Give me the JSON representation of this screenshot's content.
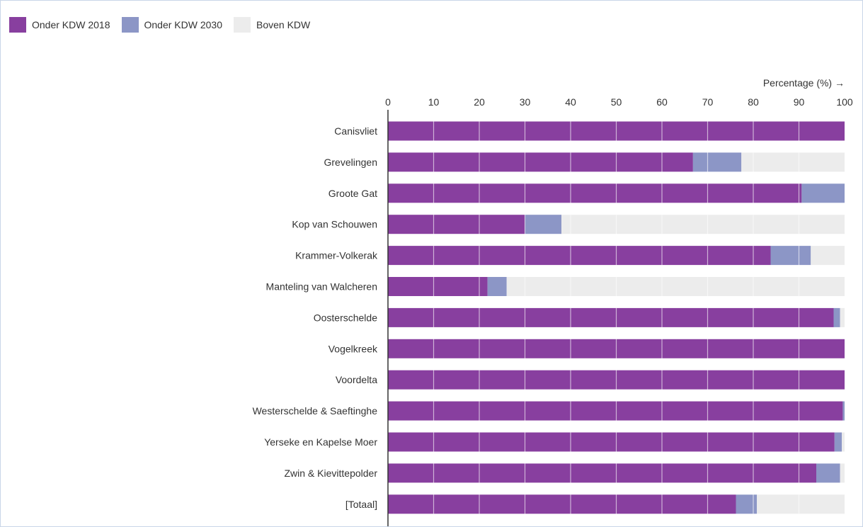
{
  "legend": [
    {
      "label": "Onder KDW 2018",
      "color": "#883f9f"
    },
    {
      "label": "Onder KDW 2030",
      "color": "#8c96c6"
    },
    {
      "label": "Boven KDW",
      "color": "#ececec"
    }
  ],
  "chart_data": {
    "type": "bar",
    "orientation": "horizontal",
    "stacked": true,
    "xlabel": "Percentage (%) →",
    "xlim": [
      0,
      100
    ],
    "xticks": [
      0,
      10,
      20,
      30,
      40,
      50,
      60,
      70,
      80,
      90,
      100
    ],
    "grid": true,
    "legend_position": "top-left",
    "categories": [
      "Canisvliet",
      "Grevelingen",
      "Groote Gat",
      "Kop van Schouwen",
      "Krammer-Volkerak",
      "Manteling van Walcheren",
      "Oosterschelde",
      "Vogelkreek",
      "Voordelta",
      "Westerschelde & Saeftinghe",
      "Yerseke en Kapelse Moer",
      "Zwin & Kievittepolder",
      "[Totaal]"
    ],
    "series": [
      {
        "name": "Onder KDW 2018",
        "color": "#883f9f",
        "values": [
          100,
          66.8,
          90.6,
          30,
          83.8,
          21.8,
          97.6,
          100,
          100,
          99.6,
          97.8,
          93.8,
          76.2
        ]
      },
      {
        "name": "Onder KDW 2030",
        "color": "#8c96c6",
        "values": [
          0,
          10.6,
          9.4,
          8,
          8.8,
          4.2,
          1.4,
          0,
          0,
          0.4,
          1.6,
          5.2,
          4.6
        ]
      },
      {
        "name": "Boven KDW",
        "color": "#ececec",
        "values": [
          0,
          22.6,
          0,
          62,
          7.4,
          74,
          1,
          0,
          0,
          0,
          0.6,
          1,
          19.2
        ]
      }
    ]
  }
}
